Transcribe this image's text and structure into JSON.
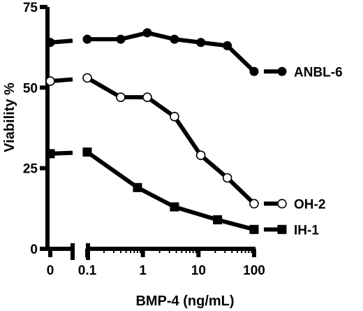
{
  "chart_data": {
    "type": "line",
    "xlabel": "BMP-4 (ng/mL)",
    "ylabel": "Viability %",
    "x_scale": "log",
    "x_axis_break": true,
    "x_ticks": [
      {
        "value": 0,
        "label": "0"
      },
      {
        "value": 0.1,
        "label": "0.1"
      },
      {
        "value": 1,
        "label": "1"
      },
      {
        "value": 10,
        "label": "10"
      },
      {
        "value": 100,
        "label": "100"
      }
    ],
    "y_ticks": [
      {
        "value": 0,
        "label": "0"
      },
      {
        "value": 25,
        "label": "25"
      },
      {
        "value": 50,
        "label": "50"
      },
      {
        "value": 75,
        "label": "75"
      }
    ],
    "ylim": [
      0,
      75
    ],
    "xlim": [
      0.1,
      100
    ],
    "grid": false,
    "legend": "right",
    "series": [
      {
        "name": "ANBL-6",
        "marker": "filled-circle",
        "zero_value": 64,
        "x": [
          0.1,
          0.4,
          1.2,
          3.7,
          11,
          33,
          100
        ],
        "values": [
          65,
          65,
          67,
          65,
          64,
          63,
          55
        ]
      },
      {
        "name": "OH-2",
        "marker": "open-circle",
        "zero_value": 52,
        "x": [
          0.1,
          0.4,
          1.2,
          3.7,
          11,
          33,
          100
        ],
        "values": [
          53,
          47,
          47,
          41,
          29,
          22,
          14
        ]
      },
      {
        "name": "IH-1",
        "marker": "filled-square",
        "zero_value": 29.5,
        "x": [
          0.1,
          0.8,
          3.7,
          22,
          100
        ],
        "values": [
          30,
          19,
          13,
          9,
          6
        ]
      }
    ]
  }
}
